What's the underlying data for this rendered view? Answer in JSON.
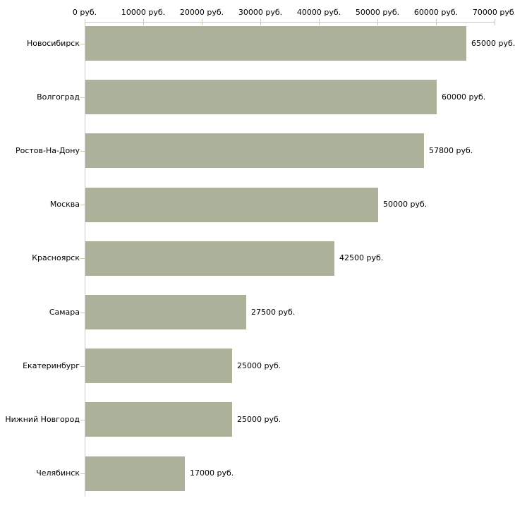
{
  "chart_data": {
    "type": "bar",
    "orientation": "horizontal",
    "title": "",
    "xlabel": "",
    "ylabel": "",
    "unit": "руб.",
    "categories": [
      "Новосибирск",
      "Волгоград",
      "Ростов-На-Дону",
      "Москва",
      "Красноярск",
      "Самара",
      "Екатеринбург",
      "Нижний Новгород",
      "Челябинск"
    ],
    "values": [
      65000,
      60000,
      57800,
      50000,
      42500,
      27500,
      25000,
      25000,
      17000
    ],
    "value_labels": [
      "65000 руб.",
      "60000 руб.",
      "57800 руб.",
      "50000 руб.",
      "42500 руб.",
      "27500 руб.",
      "25000 руб.",
      "25000 руб.",
      "17000 руб."
    ],
    "x_axis": {
      "position": "top",
      "min": 0,
      "max": 70000,
      "ticks": [
        0,
        10000,
        20000,
        30000,
        40000,
        50000,
        60000,
        70000
      ],
      "tick_labels": [
        "0 руб.",
        "10000 руб.",
        "20000 руб.",
        "30000 руб.",
        "40000 руб.",
        "50000 руб.",
        "60000 руб.",
        "70000 руб."
      ]
    },
    "legend": "none",
    "grid": "off",
    "colors": {
      "bar": "#acb199",
      "axis_line": "#cccccc",
      "tick_mark": "#cdc8a5",
      "text": "#000000",
      "background": "#ffffff"
    }
  }
}
